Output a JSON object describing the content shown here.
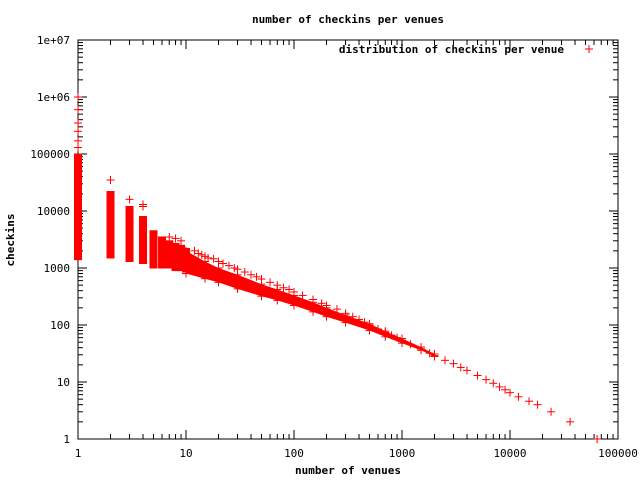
{
  "chart_data": {
    "type": "scatter",
    "title": "number of checkins per venues",
    "xlabel": "number of venues",
    "ylabel": "checkins",
    "x_scale": "log",
    "y_scale": "log",
    "xlim": [
      1,
      100000
    ],
    "ylim": [
      1,
      10000000
    ],
    "x_ticks": [
      "1",
      "10",
      "100",
      "1000",
      "10000",
      "100000"
    ],
    "y_ticks": [
      "1",
      "10",
      "100",
      "1000",
      "10000",
      "100000",
      "1e+06",
      "1e+07"
    ],
    "legend": {
      "label": "distribution of checkins per venue",
      "position": "top-right"
    },
    "marker": "+",
    "color": "#ff0000",
    "series": [
      {
        "name": "distribution of checkins per venue",
        "vertical_ranges": [
          {
            "x": 1,
            "ymin": 1400,
            "ymax": 100000
          },
          {
            "x": 2,
            "ymin": 1500,
            "ymax": 22000
          },
          {
            "x": 3,
            "ymin": 1300,
            "ymax": 12000
          },
          {
            "x": 4,
            "ymin": 1200,
            "ymax": 8000
          },
          {
            "x": 5,
            "ymin": 1000,
            "ymax": 4500
          },
          {
            "x": 6,
            "ymin": 1000,
            "ymax": 3500
          },
          {
            "x": 7,
            "ymin": 1000,
            "ymax": 3000
          },
          {
            "x": 8,
            "ymin": 900,
            "ymax": 2700
          },
          {
            "x": 9,
            "ymin": 900,
            "ymax": 2500
          },
          {
            "x": 10,
            "ymin": 850,
            "ymax": 2200
          }
        ],
        "points": [
          [
            1,
            1000000
          ],
          [
            1,
            600000
          ],
          [
            1,
            350000
          ],
          [
            1,
            250000
          ],
          [
            1,
            170000
          ],
          [
            1,
            130000
          ],
          [
            2,
            35000
          ],
          [
            3,
            16000
          ],
          [
            4,
            13000
          ],
          [
            4,
            12000
          ],
          [
            5,
            3800
          ],
          [
            7,
            3500
          ],
          [
            8,
            3300
          ],
          [
            9,
            3000
          ],
          [
            12,
            2000
          ],
          [
            13,
            1800
          ],
          [
            14,
            1700
          ],
          [
            15,
            1600
          ],
          [
            16,
            1500
          ],
          [
            18,
            1450
          ],
          [
            20,
            1300
          ],
          [
            22,
            1200
          ],
          [
            25,
            1100
          ],
          [
            28,
            1000
          ],
          [
            30,
            950
          ],
          [
            35,
            850
          ],
          [
            40,
            760
          ],
          [
            45,
            700
          ],
          [
            50,
            640
          ],
          [
            60,
            560
          ],
          [
            70,
            500
          ],
          [
            80,
            450
          ],
          [
            90,
            420
          ],
          [
            100,
            380
          ],
          [
            120,
            330
          ],
          [
            150,
            280
          ],
          [
            180,
            240
          ],
          [
            200,
            220
          ],
          [
            250,
            190
          ],
          [
            300,
            160
          ],
          [
            350,
            140
          ],
          [
            400,
            125
          ],
          [
            450,
            112
          ],
          [
            500,
            100
          ],
          [
            600,
            85
          ],
          [
            700,
            74
          ],
          [
            800,
            66
          ],
          [
            900,
            60
          ],
          [
            1000,
            54
          ],
          [
            1200,
            46
          ],
          [
            1500,
            38
          ],
          [
            1800,
            32
          ],
          [
            2000,
            29
          ],
          [
            2500,
            24
          ],
          [
            3000,
            21
          ],
          [
            3500,
            18
          ],
          [
            4000,
            16
          ],
          [
            5000,
            13
          ],
          [
            6000,
            11
          ],
          [
            7000,
            9.5
          ],
          [
            8000,
            8.2
          ],
          [
            9000,
            7.3
          ],
          [
            10000,
            6.5
          ],
          [
            12000,
            5.5
          ],
          [
            15000,
            4.6
          ],
          [
            18000,
            4
          ],
          [
            24000,
            3
          ],
          [
            36000,
            2
          ],
          [
            64000,
            1
          ]
        ],
        "band": [
          [
            10,
            800,
            2000
          ],
          [
            15,
            650,
            1300
          ],
          [
            20,
            560,
            1000
          ],
          [
            30,
            430,
            760
          ],
          [
            50,
            320,
            520
          ],
          [
            70,
            270,
            420
          ],
          [
            100,
            220,
            330
          ],
          [
            150,
            170,
            250
          ],
          [
            200,
            140,
            200
          ],
          [
            300,
            110,
            150
          ],
          [
            500,
            80,
            105
          ],
          [
            700,
            62,
            78
          ],
          [
            1000,
            48,
            58
          ],
          [
            1500,
            36,
            41
          ],
          [
            2000,
            28,
            31
          ]
        ]
      }
    ]
  }
}
